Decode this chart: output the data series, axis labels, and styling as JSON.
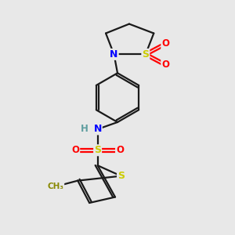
{
  "background_color": "#e8e8e8",
  "bond_color": "#1a1a1a",
  "atom_colors": {
    "S": "#cccc00",
    "N": "#0000ff",
    "O": "#ff0000",
    "H": "#5f9ea0",
    "C": "#1a1a1a",
    "CH3": "#888800"
  },
  "bond_width": 1.6,
  "figsize": [
    3.0,
    3.0
  ],
  "dpi": 100,
  "xlim": [
    0.5,
    9.5
  ],
  "ylim": [
    0.5,
    10.5
  ]
}
